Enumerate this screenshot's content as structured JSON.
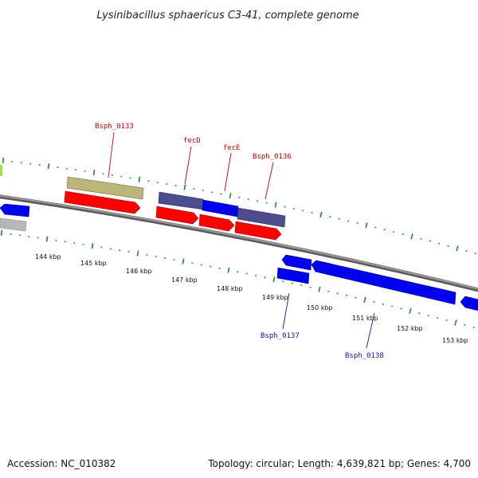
{
  "title": "Lysinibacillus sphaericus C3-41, complete genome",
  "footer": {
    "accession": "Accession: NC_010382",
    "summary": "Topology: circular; Length: 4,639,821 bp; Genes: 4,700"
  },
  "scale_ticks": [
    "144 kbp",
    "145 kbp",
    "146 kbp",
    "147 kbp",
    "148 kbp",
    "149 kbp",
    "150 kbp",
    "151 kbp",
    "152 kbp",
    "153 kbp"
  ],
  "gene_labels": [
    {
      "id": "bsph0133",
      "text": "Bsph_0133",
      "color": "#c00000"
    },
    {
      "id": "fecd",
      "text": "fecD",
      "color": "#c00000"
    },
    {
      "id": "fece",
      "text": "fecE",
      "color": "#c00000"
    },
    {
      "id": "bsph0136",
      "text": "Bsph_0136",
      "color": "#c00000"
    },
    {
      "id": "bsph0137",
      "text": "Bsph_0137",
      "color": "#1010a8"
    },
    {
      "id": "bsph0138",
      "text": "Bsph_0138",
      "color": "#1010a8"
    }
  ],
  "colors": {
    "red_gene": "#ff0000",
    "blue_gene": "#0000ee",
    "slate_gene": "#4a4a8c",
    "olive_gene": "#b8b070",
    "gray_gene": "#b0b0b0",
    "backbone": "#808080",
    "dotted_track": "#1e8a1e",
    "green_marker": "#a8e040"
  },
  "icons": [
    "gene-arrow-icon"
  ]
}
